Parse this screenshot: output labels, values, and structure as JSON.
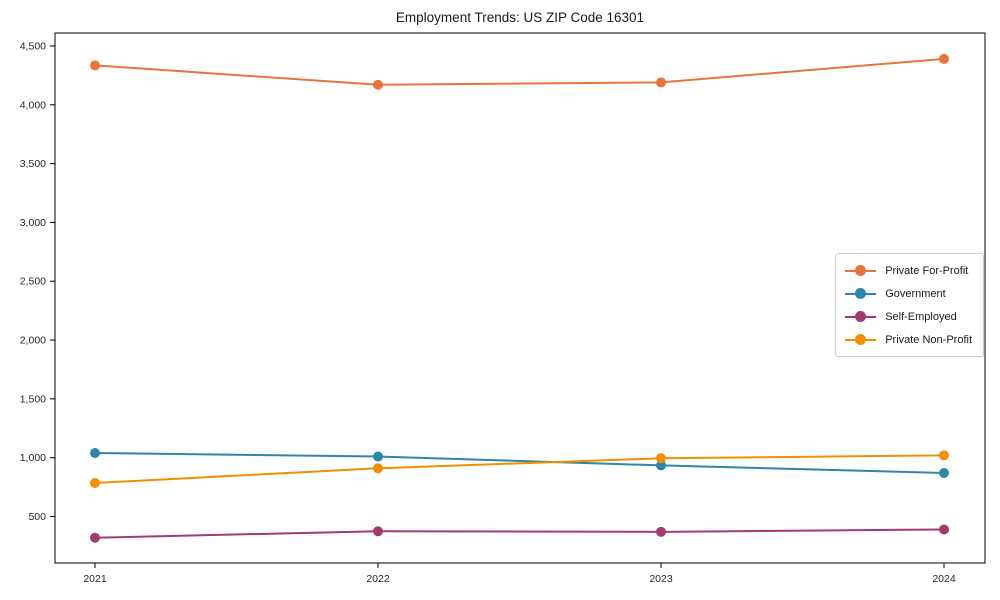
{
  "chart_data": {
    "type": "line",
    "title": "Employment Trends: US ZIP Code 16301",
    "xlabel": "",
    "ylabel": "",
    "x": [
      "2021",
      "2022",
      "2023",
      "2024"
    ],
    "series": [
      {
        "name": "Private For-Profit",
        "color": "#E8743C",
        "values": [
          4335,
          4170,
          4190,
          4390
        ]
      },
      {
        "name": "Government",
        "color": "#2E86AB",
        "values": [
          1040,
          1010,
          935,
          870
        ]
      },
      {
        "name": "Self-Employed",
        "color": "#A23B72",
        "values": [
          320,
          375,
          370,
          390
        ]
      },
      {
        "name": "Private Non-Profit",
        "color": "#F18F01",
        "values": [
          785,
          910,
          995,
          1020
        ]
      }
    ],
    "yticks": [
      500,
      1000,
      1500,
      2000,
      2500,
      3000,
      3500,
      4000,
      4500
    ],
    "ytick_labels": [
      "500",
      "1,000",
      "1,500",
      "2,000",
      "2,500",
      "3,000",
      "3,500",
      "4,000",
      "4,500"
    ],
    "ylim": [
      105,
      4610
    ],
    "grid": false,
    "marker": "circle",
    "legend_position": "center right"
  }
}
